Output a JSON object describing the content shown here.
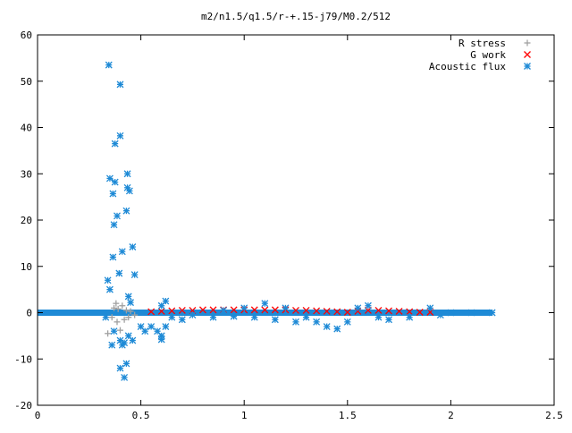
{
  "chart_data": {
    "type": "scatter",
    "title": "m2/n1.5/q1.5/r-+.15-j79/M0.2/512",
    "xlabel": "",
    "ylabel": "",
    "xlim": [
      0,
      2.5
    ],
    "ylim": [
      -20,
      60
    ],
    "xticks": [
      "0",
      "0.5",
      "1",
      "1.5",
      "2",
      "2.5"
    ],
    "yticks": [
      "-20",
      "-10",
      "0",
      "10",
      "20",
      "30",
      "40",
      "50",
      "60"
    ],
    "grid": false,
    "legend_position": "top-right",
    "series": [
      {
        "name": "R stress",
        "marker": "plus",
        "color": "#a0a0a0",
        "points": [
          [
            0.34,
            -4.5
          ],
          [
            0.36,
            -1
          ],
          [
            0.37,
            1
          ],
          [
            0.38,
            2
          ],
          [
            0.385,
            -2
          ],
          [
            0.39,
            0.8
          ],
          [
            0.4,
            -3.8
          ],
          [
            0.41,
            1.5
          ],
          [
            0.42,
            -1.5
          ],
          [
            0.43,
            0.5
          ],
          [
            0.44,
            -1
          ],
          [
            0.45,
            0.3
          ],
          [
            0.47,
            -0.5
          ]
        ]
      },
      {
        "name": "G work",
        "marker": "cross",
        "color": "#ff0000",
        "points": [
          [
            0.55,
            0.2
          ],
          [
            0.6,
            0.3
          ],
          [
            0.65,
            0.4
          ],
          [
            0.7,
            0.5
          ],
          [
            0.75,
            0.5
          ],
          [
            0.8,
            0.6
          ],
          [
            0.85,
            0.6
          ],
          [
            0.9,
            0.6
          ],
          [
            0.95,
            0.6
          ],
          [
            1.0,
            0.6
          ],
          [
            1.05,
            0.6
          ],
          [
            1.1,
            0.6
          ],
          [
            1.15,
            0.6
          ],
          [
            1.2,
            0.6
          ],
          [
            1.25,
            0.5
          ],
          [
            1.3,
            0.5
          ],
          [
            1.35,
            0.4
          ],
          [
            1.4,
            0.3
          ],
          [
            1.45,
            0.2
          ],
          [
            1.5,
            0.1
          ],
          [
            1.55,
            0.3
          ],
          [
            1.6,
            0.5
          ],
          [
            1.65,
            0.5
          ],
          [
            1.7,
            0.4
          ],
          [
            1.75,
            0.3
          ],
          [
            1.8,
            0.2
          ],
          [
            1.85,
            0.1
          ],
          [
            1.9,
            0.1
          ]
        ]
      },
      {
        "name": "Acoustic flux",
        "marker": "star",
        "color": "#1e8ad6",
        "points": [
          [
            0.345,
            53.5
          ],
          [
            0.4,
            49.3
          ],
          [
            0.4,
            38.2
          ],
          [
            0.375,
            36.5
          ],
          [
            0.35,
            29
          ],
          [
            0.375,
            28.2
          ],
          [
            0.435,
            30
          ],
          [
            0.435,
            27
          ],
          [
            0.445,
            26.3
          ],
          [
            0.365,
            25.7
          ],
          [
            0.385,
            20.9
          ],
          [
            0.43,
            22
          ],
          [
            0.37,
            19
          ],
          [
            0.41,
            13.2
          ],
          [
            0.46,
            14.2
          ],
          [
            0.365,
            12
          ],
          [
            0.395,
            8.5
          ],
          [
            0.47,
            8.2
          ],
          [
            0.34,
            7
          ],
          [
            0.35,
            5
          ],
          [
            0.44,
            3.5
          ],
          [
            0.45,
            2.2
          ],
          [
            0.33,
            -1
          ],
          [
            0.37,
            -4
          ],
          [
            0.4,
            -6
          ],
          [
            0.42,
            -6.5
          ],
          [
            0.44,
            -5
          ],
          [
            0.46,
            -6
          ],
          [
            0.36,
            -7
          ],
          [
            0.41,
            -7
          ],
          [
            0.4,
            -12
          ],
          [
            0.43,
            -11
          ],
          [
            0.42,
            -14
          ],
          [
            0.5,
            -3
          ],
          [
            0.52,
            -4
          ],
          [
            0.55,
            -3
          ],
          [
            0.58,
            -4
          ],
          [
            0.6,
            -5
          ],
          [
            0.6,
            -5.8
          ],
          [
            0.62,
            -3
          ],
          [
            0.6,
            1.5
          ],
          [
            0.62,
            2.5
          ],
          [
            0.65,
            -1
          ],
          [
            0.7,
            -1.5
          ],
          [
            0.75,
            -0.5
          ],
          [
            0.85,
            -1
          ],
          [
            0.9,
            0.5
          ],
          [
            0.95,
            -0.8
          ],
          [
            1.0,
            1
          ],
          [
            1.05,
            -1
          ],
          [
            1.1,
            2
          ],
          [
            1.15,
            -1.5
          ],
          [
            1.2,
            1
          ],
          [
            1.25,
            -2
          ],
          [
            1.3,
            -1
          ],
          [
            1.35,
            -2
          ],
          [
            1.4,
            -3
          ],
          [
            1.45,
            -3.5
          ],
          [
            1.5,
            -2
          ],
          [
            1.55,
            1
          ],
          [
            1.6,
            1.5
          ],
          [
            1.65,
            -1
          ],
          [
            1.7,
            -1.5
          ],
          [
            1.8,
            -1
          ],
          [
            1.9,
            1
          ],
          [
            1.95,
            -0.5
          ],
          [
            2.0,
            0
          ],
          [
            2.1,
            0
          ],
          [
            2.2,
            0
          ]
        ]
      }
    ]
  }
}
